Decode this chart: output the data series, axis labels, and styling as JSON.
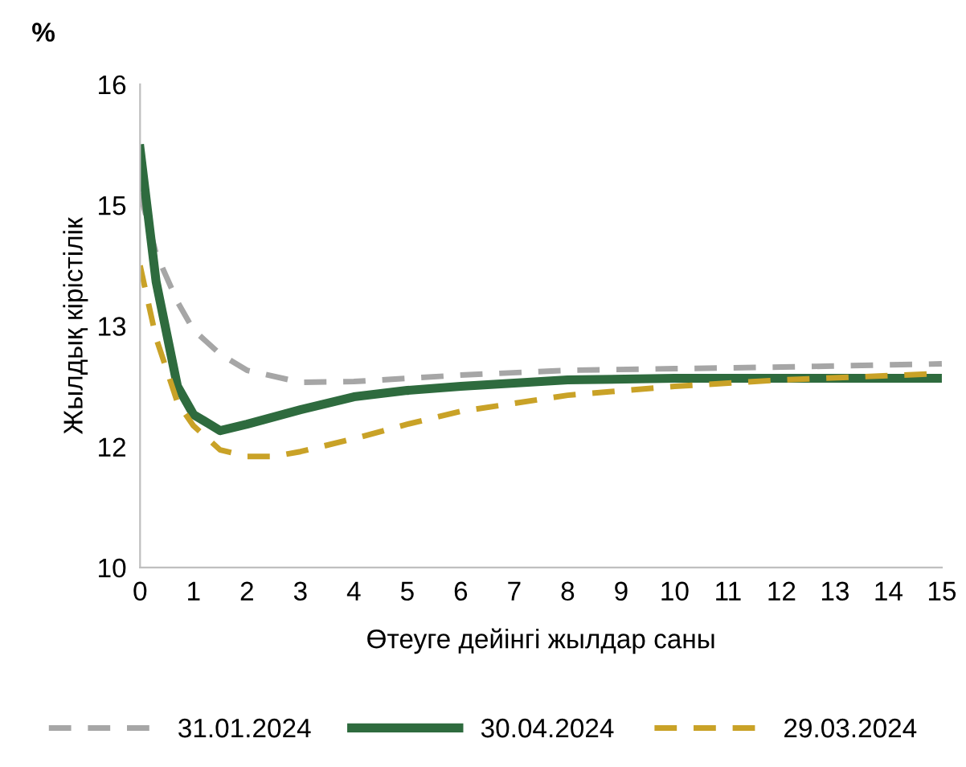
{
  "chart_data": {
    "type": "line",
    "xlabel": "Өтеуге дейінгі жылдар саны",
    "ylabel": "Жылдық кірістілік",
    "annotations": [
      "%"
    ],
    "xlim": [
      0,
      15
    ],
    "xticks": [
      0,
      1,
      2,
      3,
      4,
      5,
      6,
      7,
      8,
      9,
      10,
      11,
      12,
      13,
      14,
      15
    ],
    "ylim": [
      10,
      16
    ],
    "yticks": [
      10,
      {
        "value": 11.5,
        "label": "12"
      },
      13,
      {
        "value": 14.5,
        "label": "15"
      },
      16
    ],
    "grid": false,
    "legend": "bottom",
    "marker": "none",
    "series": [
      {
        "name": "31.01.2024",
        "color": "#a6a6a6",
        "line_style": "dashed",
        "x": [
          0,
          0.3,
          0.7,
          1,
          1.5,
          2,
          3,
          4,
          5,
          6,
          8,
          10,
          12,
          15
        ],
        "values": [
          14.65,
          13.9,
          13.3,
          12.95,
          12.65,
          12.45,
          12.3,
          12.31,
          12.35,
          12.39,
          12.45,
          12.47,
          12.49,
          12.53
        ]
      },
      {
        "name": "30.04.2024",
        "color": "#2e6b3e",
        "line_style": "solid",
        "x": [
          0,
          0.3,
          0.7,
          1,
          1.5,
          2,
          3,
          4,
          5,
          6,
          8,
          10,
          12,
          15
        ],
        "values": [
          15.2,
          13.55,
          12.25,
          11.9,
          11.7,
          11.78,
          11.96,
          12.12,
          12.2,
          12.25,
          12.33,
          12.35,
          12.35,
          12.35
        ]
      },
      {
        "name": "29.03.2024",
        "color": "#c9a227",
        "line_style": "dashed",
        "x": [
          0,
          0.3,
          0.7,
          1,
          1.5,
          2,
          2.5,
          3,
          4,
          5,
          6,
          8,
          10,
          12,
          15
        ],
        "values": [
          13.75,
          12.85,
          12.05,
          11.76,
          11.46,
          11.38,
          11.38,
          11.44,
          11.6,
          11.78,
          11.94,
          12.14,
          12.25,
          12.33,
          12.41
        ]
      }
    ]
  }
}
